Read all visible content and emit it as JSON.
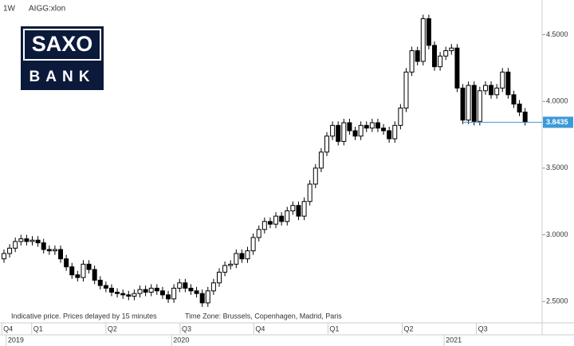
{
  "chart_data": {
    "type": "candlestick",
    "interval": "1W",
    "symbol": "AIGG:xlon",
    "logo_top": "SAXO",
    "logo_bottom": "BANK",
    "footnote": "Indicative price. Prices delayed by 15 minutes",
    "timezone": "Time Zone: Brussels, Copenhagen, Madrid, Paris",
    "ylim": [
      2.34,
      4.76
    ],
    "xlim": [
      -0.7,
      95
    ],
    "yticks": [
      {
        "value": 2.5,
        "label": "2.5000"
      },
      {
        "value": 3,
        "label": "3.0000"
      },
      {
        "value": 3.5,
        "label": "3.5000"
      },
      {
        "value": 4,
        "label": "4.0000"
      },
      {
        "value": 4.5,
        "label": "4.5000"
      }
    ],
    "xticks": [
      {
        "value": -0.4,
        "label": "Q4"
      },
      {
        "value": 4.9,
        "label": "Q1"
      },
      {
        "value": 18,
        "label": "Q2"
      },
      {
        "value": 31.1,
        "label": "Q3"
      },
      {
        "value": 44.1,
        "label": "Q4"
      },
      {
        "value": 57.2,
        "label": "Q1"
      },
      {
        "value": 70.3,
        "label": "Q2"
      },
      {
        "value": 83.4,
        "label": "Q3"
      }
    ],
    "year_ticks": [
      {
        "value": 0.4,
        "label": "2019"
      },
      {
        "value": 29.6,
        "label": "2020"
      },
      {
        "value": 77.7,
        "label": "2021"
      }
    ],
    "up_color": "#ffffff",
    "down_color": "#000000",
    "last_color": "#3d9ad8",
    "open": [
      2.82,
      2.86,
      2.9,
      2.95,
      2.97,
      2.95,
      2.96,
      2.94,
      2.89,
      2.88,
      2.89,
      2.82,
      2.76,
      2.7,
      2.68,
      2.78,
      2.74,
      2.66,
      2.62,
      2.6,
      2.57,
      2.56,
      2.55,
      2.54,
      2.56,
      2.59,
      2.57,
      2.6,
      2.58,
      2.55,
      2.52,
      2.6,
      2.64,
      2.6,
      2.58,
      2.56,
      2.49,
      2.58,
      2.64,
      2.72,
      2.77,
      2.78,
      2.86,
      2.82,
      2.88,
      2.98,
      3.04,
      3.1,
      3.08,
      3.14,
      3.1,
      3.18,
      3.22,
      3.14,
      3.25,
      3.38,
      3.5,
      3.62,
      3.74,
      3.82,
      3.7,
      3.84,
      3.78,
      3.74,
      3.82,
      3.8,
      3.84,
      3.8,
      3.78,
      3.72,
      3.82,
      3.95,
      4.22,
      4.38,
      4.3,
      4.62,
      4.42,
      4.26,
      4.34,
      4.38,
      4.4,
      4.1,
      3.86,
      4.12,
      3.85,
      4.08,
      4.12,
      4.05,
      4.1,
      4.22,
      4.05,
      3.98,
      3.92
    ],
    "high": [
      2.89,
      2.93,
      2.98,
      3.0,
      3.0,
      2.99,
      2.99,
      2.97,
      2.92,
      2.92,
      2.92,
      2.85,
      2.79,
      2.73,
      2.81,
      2.81,
      2.77,
      2.69,
      2.65,
      2.63,
      2.6,
      2.59,
      2.58,
      2.59,
      2.62,
      2.62,
      2.63,
      2.63,
      2.61,
      2.58,
      2.63,
      2.67,
      2.67,
      2.63,
      2.61,
      2.59,
      2.61,
      2.67,
      2.75,
      2.8,
      2.81,
      2.89,
      2.89,
      2.91,
      3.01,
      3.07,
      3.13,
      3.13,
      3.17,
      3.17,
      3.21,
      3.25,
      3.25,
      3.28,
      3.41,
      3.53,
      3.65,
      3.77,
      3.85,
      3.85,
      3.87,
      3.87,
      3.81,
      3.85,
      3.85,
      3.87,
      3.87,
      3.83,
      3.81,
      3.85,
      3.98,
      4.25,
      4.41,
      4.41,
      4.65,
      4.65,
      4.45,
      4.37,
      4.41,
      4.43,
      4.43,
      4.13,
      4.15,
      4.15,
      4.11,
      4.15,
      4.15,
      4.13,
      4.25,
      4.25,
      4.08,
      4.01,
      3.95
    ],
    "low": [
      2.79,
      2.83,
      2.87,
      2.92,
      2.92,
      2.92,
      2.91,
      2.86,
      2.85,
      2.85,
      2.79,
      2.73,
      2.67,
      2.65,
      2.65,
      2.71,
      2.63,
      2.59,
      2.57,
      2.54,
      2.53,
      2.52,
      2.51,
      2.51,
      2.53,
      2.54,
      2.54,
      2.55,
      2.52,
      2.49,
      2.49,
      2.57,
      2.57,
      2.55,
      2.53,
      2.46,
      2.46,
      2.55,
      2.61,
      2.69,
      2.74,
      2.75,
      2.79,
      2.79,
      2.85,
      2.95,
      3.01,
      3.05,
      3.05,
      3.07,
      3.07,
      3.15,
      3.11,
      3.11,
      3.22,
      3.35,
      3.47,
      3.59,
      3.71,
      3.67,
      3.67,
      3.75,
      3.71,
      3.71,
      3.77,
      3.77,
      3.77,
      3.75,
      3.69,
      3.69,
      3.79,
      3.92,
      4.19,
      4.27,
      4.27,
      4.39,
      4.23,
      4.23,
      4.31,
      4.35,
      4.07,
      3.83,
      3.83,
      3.82,
      3.82,
      4.05,
      4.02,
      4.02,
      4.07,
      4.02,
      3.95,
      3.89,
      3.82
    ],
    "close": [
      2.86,
      2.9,
      2.95,
      2.97,
      2.95,
      2.96,
      2.94,
      2.89,
      2.88,
      2.89,
      2.82,
      2.76,
      2.7,
      2.68,
      2.78,
      2.74,
      2.66,
      2.62,
      2.6,
      2.57,
      2.56,
      2.55,
      2.54,
      2.56,
      2.59,
      2.57,
      2.6,
      2.58,
      2.55,
      2.52,
      2.6,
      2.64,
      2.6,
      2.58,
      2.56,
      2.49,
      2.58,
      2.64,
      2.72,
      2.77,
      2.78,
      2.86,
      2.82,
      2.88,
      2.98,
      3.04,
      3.1,
      3.08,
      3.14,
      3.1,
      3.18,
      3.22,
      3.14,
      3.25,
      3.38,
      3.5,
      3.62,
      3.74,
      3.82,
      3.7,
      3.84,
      3.78,
      3.74,
      3.82,
      3.8,
      3.84,
      3.8,
      3.78,
      3.72,
      3.82,
      3.95,
      4.22,
      4.38,
      4.3,
      4.62,
      4.42,
      4.26,
      4.34,
      4.38,
      4.4,
      4.1,
      3.86,
      4.12,
      3.85,
      4.08,
      4.12,
      4.05,
      4.1,
      4.22,
      4.05,
      3.98,
      3.92,
      3.8435
    ]
  }
}
